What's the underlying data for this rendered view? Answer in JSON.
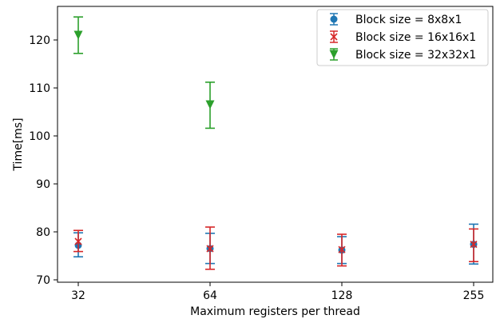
{
  "chart_data": {
    "type": "scatter",
    "title": "",
    "xlabel": "Maximum registers per thread",
    "ylabel": "Time[ms]",
    "categories": [
      "32",
      "64",
      "128",
      "255"
    ],
    "ylim": [
      69.5,
      127
    ],
    "yticks": [
      70,
      80,
      90,
      100,
      110,
      120
    ],
    "grid": false,
    "legend_position": "top-right",
    "error_bars": true,
    "series": [
      {
        "name": "Block size = 8x8x1",
        "marker": "circle",
        "color": "#1f77b4",
        "values": [
          77.2,
          76.5,
          76.2,
          77.4
        ],
        "err_low": [
          74.8,
          73.4,
          73.4,
          73.3
        ],
        "err_high": [
          79.8,
          79.7,
          79.0,
          81.6
        ]
      },
      {
        "name": "Block size = 16x16x1",
        "marker": "x",
        "color": "#d62728",
        "values": [
          78.0,
          76.5,
          76.3,
          77.4
        ],
        "err_low": [
          75.9,
          72.2,
          72.9,
          73.8
        ],
        "err_high": [
          80.3,
          81.0,
          79.5,
          80.6
        ]
      },
      {
        "name": "Block size = 32x32x1",
        "marker": "triangle-down",
        "color": "#2ca02c",
        "values": [
          121.0,
          106.5,
          null,
          null
        ],
        "err_low": [
          117.2,
          101.6,
          null,
          null
        ],
        "err_high": [
          124.8,
          111.2,
          null,
          null
        ]
      }
    ]
  }
}
